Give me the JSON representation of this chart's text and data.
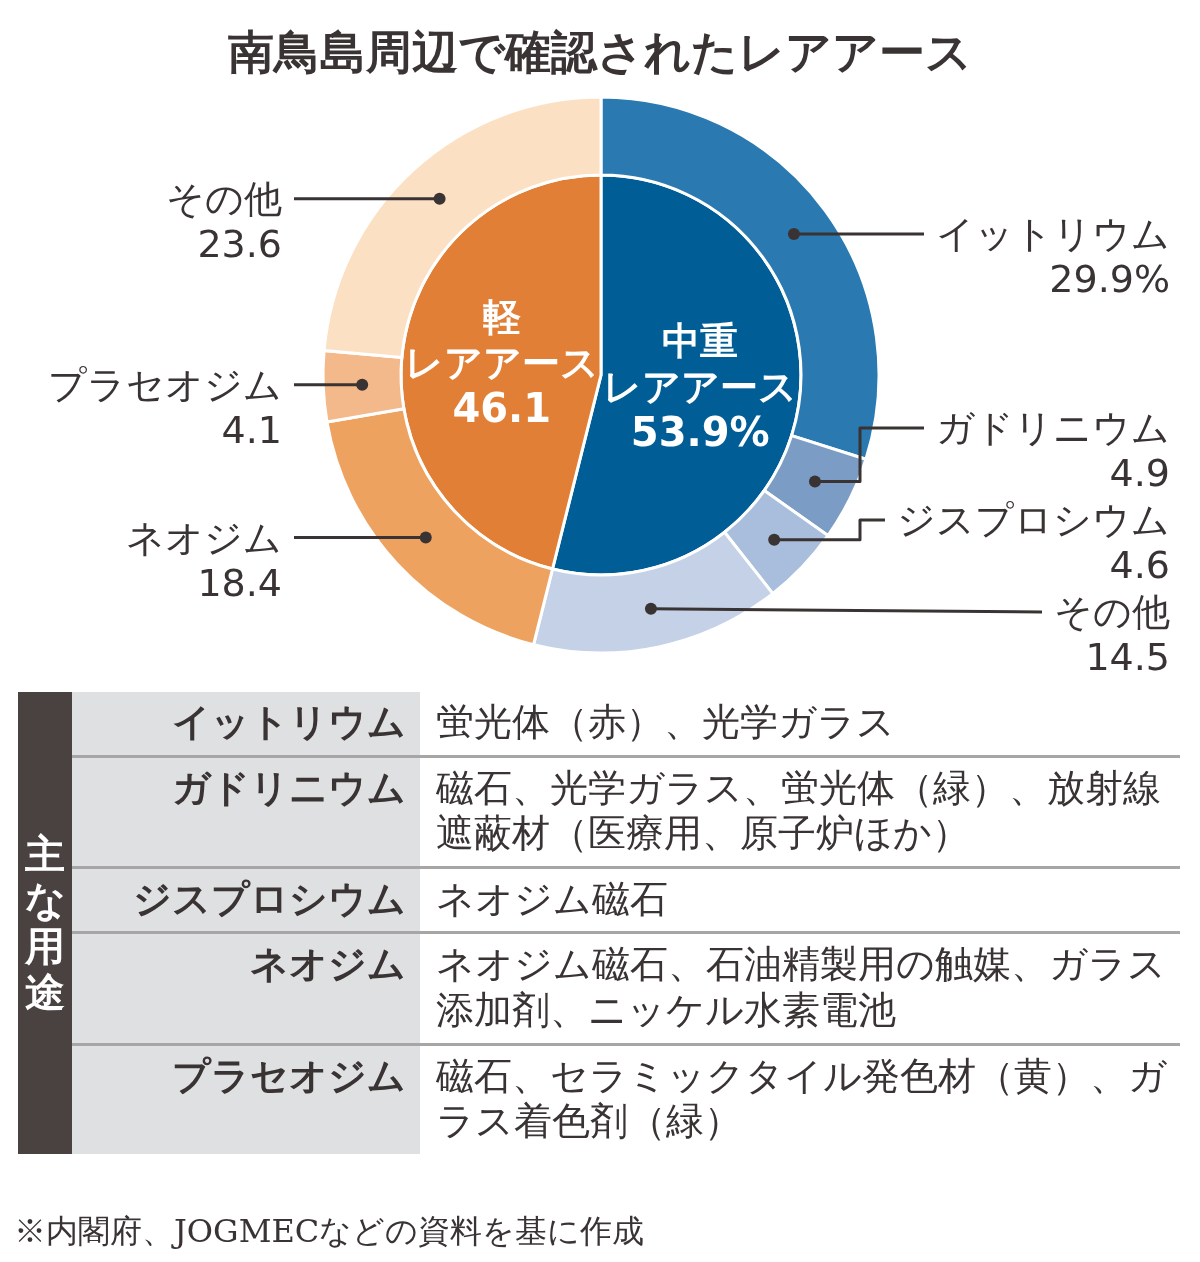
{
  "chart_data": [
    {
      "type": "donut",
      "title": "南鳥島周辺で確認されたレアアース",
      "categories": [
        "イットリウム",
        "ガドリニウム",
        "ジスプロシウム",
        "その他",
        "ネオジム",
        "プラセオジム",
        "その他"
      ],
      "values": [
        29.9,
        4.9,
        4.6,
        14.5,
        18.4,
        4.1,
        23.6
      ],
      "colors": [
        "#2a79b0",
        "#7b9cc4",
        "#a8bedc",
        "#c4d1e6",
        "#eea25f",
        "#f3b98a",
        "#fbe0c4"
      ],
      "value_labels": [
        "29.9%",
        "4.9",
        "4.6",
        "14.5",
        "18.4",
        "4.1",
        "23.6"
      ],
      "annotations": [
        "主な用途",
        "イットリウム",
        "蛍光体（赤）、光学ガラス",
        "ガドリニウム",
        "磁石、光学ガラス、蛍光体（緑）、放射線遮蔽材（医療用、原子炉ほか）",
        "ジスプロシウム",
        "ネオジム磁石",
        "ネオジム",
        "ネオジム磁石、石油精製用の触媒、ガラス添加剤、ニッケル水素電池",
        "プラセオジム",
        "磁石、セラミックタイル発色材（黄）、ガラス着色剤（緑）",
        "※内閣府、JOGMECなどの資料を基に作成"
      ]
    },
    {
      "type": "pie",
      "categories": [
        "中重レアアース",
        "軽レアアース"
      ],
      "values": [
        53.9,
        46.1
      ],
      "colors": [
        "#005d96",
        "#e07f35"
      ],
      "value_labels": [
        "53.9%",
        "46.1"
      ]
    }
  ]
}
